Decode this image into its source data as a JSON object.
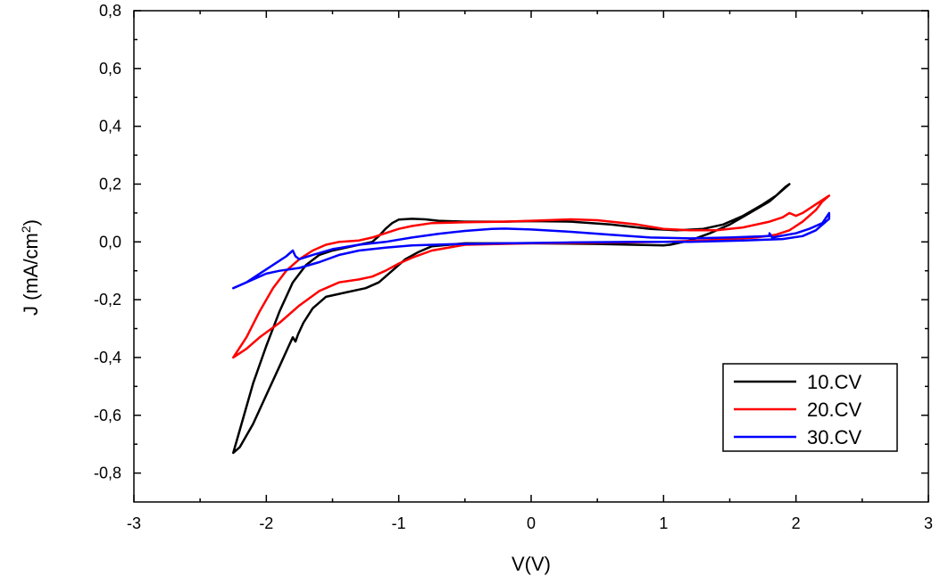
{
  "chart_data": {
    "type": "line",
    "title": "",
    "xlabel": "V(V)",
    "ylabel": "J (mA/cm²)",
    "ylabel_parts": {
      "main": "J (mA/cm",
      "sup": "2",
      "close": ")"
    },
    "xlim": [
      -3,
      3
    ],
    "ylim": [
      -0.9,
      0.8
    ],
    "x_ticks": [
      -3,
      -2,
      -1,
      0,
      1,
      2,
      3
    ],
    "x_tick_labels": [
      "-3",
      "-2",
      "-1",
      "0",
      "1",
      "2",
      "3"
    ],
    "y_ticks": [
      -0.8,
      -0.6,
      -0.4,
      -0.2,
      0.0,
      0.2,
      0.4,
      0.6,
      0.8
    ],
    "y_tick_labels": [
      "-0,8",
      "-0,6",
      "-0,4",
      "-0,2",
      "0,0",
      "0,2",
      "0,4",
      "0,6",
      "0,8"
    ],
    "grid": false,
    "legend_position": "bottom-right",
    "series": [
      {
        "name": "10.CV",
        "color": "#000000",
        "points": [
          [
            -2.25,
            -0.73
          ],
          [
            -2.2,
            -0.65
          ],
          [
            -2.1,
            -0.49
          ],
          [
            -2.0,
            -0.36
          ],
          [
            -1.9,
            -0.24
          ],
          [
            -1.8,
            -0.14
          ],
          [
            -1.7,
            -0.08
          ],
          [
            -1.6,
            -0.045
          ],
          [
            -1.5,
            -0.03
          ],
          [
            -1.4,
            -0.02
          ],
          [
            -1.3,
            -0.01
          ],
          [
            -1.2,
            0.0
          ],
          [
            -1.15,
            0.02
          ],
          [
            -1.1,
            0.045
          ],
          [
            -1.05,
            0.065
          ],
          [
            -1.0,
            0.077
          ],
          [
            -0.9,
            0.08
          ],
          [
            -0.8,
            0.078
          ],
          [
            -0.7,
            0.073
          ],
          [
            -0.5,
            0.07
          ],
          [
            -0.2,
            0.07
          ],
          [
            0.0,
            0.072
          ],
          [
            0.3,
            0.07
          ],
          [
            0.6,
            0.06
          ],
          [
            0.9,
            0.045
          ],
          [
            1.1,
            0.04
          ],
          [
            1.3,
            0.045
          ],
          [
            1.45,
            0.06
          ],
          [
            1.6,
            0.09
          ],
          [
            1.75,
            0.13
          ],
          [
            1.85,
            0.16
          ],
          [
            1.92,
            0.19
          ],
          [
            1.95,
            0.2
          ],
          [
            1.9,
            0.18
          ],
          [
            1.8,
            0.14
          ],
          [
            1.65,
            0.1
          ],
          [
            1.5,
            0.06
          ],
          [
            1.35,
            0.03
          ],
          [
            1.2,
            0.005
          ],
          [
            1.05,
            -0.01
          ],
          [
            1.0,
            -0.012
          ],
          [
            0.5,
            -0.007
          ],
          [
            0.0,
            -0.005
          ],
          [
            -0.5,
            -0.005
          ],
          [
            -0.75,
            -0.015
          ],
          [
            -0.85,
            -0.035
          ],
          [
            -0.95,
            -0.06
          ],
          [
            -1.05,
            -0.1
          ],
          [
            -1.15,
            -0.14
          ],
          [
            -1.25,
            -0.16
          ],
          [
            -1.4,
            -0.175
          ],
          [
            -1.55,
            -0.19
          ],
          [
            -1.65,
            -0.23
          ],
          [
            -1.72,
            -0.28
          ],
          [
            -1.76,
            -0.32
          ],
          [
            -1.78,
            -0.345
          ],
          [
            -1.8,
            -0.33
          ],
          [
            -1.83,
            -0.36
          ],
          [
            -1.9,
            -0.43
          ],
          [
            -2.0,
            -0.53
          ],
          [
            -2.1,
            -0.63
          ],
          [
            -2.2,
            -0.71
          ],
          [
            -2.25,
            -0.73
          ]
        ]
      },
      {
        "name": "20.CV",
        "color": "#ff0000",
        "points": [
          [
            -2.25,
            -0.4
          ],
          [
            -2.15,
            -0.33
          ],
          [
            -2.05,
            -0.24
          ],
          [
            -1.95,
            -0.16
          ],
          [
            -1.85,
            -0.1
          ],
          [
            -1.75,
            -0.06
          ],
          [
            -1.65,
            -0.03
          ],
          [
            -1.55,
            -0.01
          ],
          [
            -1.45,
            0.0
          ],
          [
            -1.3,
            0.005
          ],
          [
            -1.2,
            0.015
          ],
          [
            -1.1,
            0.03
          ],
          [
            -1.0,
            0.045
          ],
          [
            -0.9,
            0.055
          ],
          [
            -0.75,
            0.065
          ],
          [
            -0.5,
            0.068
          ],
          [
            -0.2,
            0.07
          ],
          [
            0.0,
            0.073
          ],
          [
            0.3,
            0.078
          ],
          [
            0.5,
            0.075
          ],
          [
            0.8,
            0.06
          ],
          [
            1.0,
            0.045
          ],
          [
            1.2,
            0.04
          ],
          [
            1.4,
            0.04
          ],
          [
            1.6,
            0.05
          ],
          [
            1.8,
            0.07
          ],
          [
            1.9,
            0.085
          ],
          [
            1.95,
            0.1
          ],
          [
            2.0,
            0.09
          ],
          [
            2.05,
            0.1
          ],
          [
            2.15,
            0.13
          ],
          [
            2.25,
            0.16
          ],
          [
            2.2,
            0.14
          ],
          [
            2.15,
            0.11
          ],
          [
            2.05,
            0.07
          ],
          [
            1.95,
            0.04
          ],
          [
            1.85,
            0.025
          ],
          [
            1.7,
            0.015
          ],
          [
            1.5,
            0.01
          ],
          [
            1.3,
            0.005
          ],
          [
            1.0,
            0.0
          ],
          [
            0.5,
            -0.003
          ],
          [
            0.0,
            -0.005
          ],
          [
            -0.5,
            -0.01
          ],
          [
            -0.75,
            -0.03
          ],
          [
            -0.9,
            -0.055
          ],
          [
            -1.0,
            -0.075
          ],
          [
            -1.1,
            -0.1
          ],
          [
            -1.2,
            -0.12
          ],
          [
            -1.3,
            -0.13
          ],
          [
            -1.45,
            -0.14
          ],
          [
            -1.6,
            -0.17
          ],
          [
            -1.75,
            -0.22
          ],
          [
            -1.9,
            -0.28
          ],
          [
            -2.05,
            -0.33
          ],
          [
            -2.15,
            -0.37
          ],
          [
            -2.25,
            -0.4
          ]
        ]
      },
      {
        "name": "30.CV",
        "color": "#0000ff",
        "points": [
          [
            -2.25,
            -0.16
          ],
          [
            -2.15,
            -0.14
          ],
          [
            -2.05,
            -0.11
          ],
          [
            -1.95,
            -0.08
          ],
          [
            -1.85,
            -0.05
          ],
          [
            -1.8,
            -0.03
          ],
          [
            -1.78,
            -0.05
          ],
          [
            -1.75,
            -0.06
          ],
          [
            -1.65,
            -0.045
          ],
          [
            -1.5,
            -0.025
          ],
          [
            -1.3,
            -0.01
          ],
          [
            -1.1,
            0.0
          ],
          [
            -0.9,
            0.015
          ],
          [
            -0.7,
            0.028
          ],
          [
            -0.5,
            0.038
          ],
          [
            -0.3,
            0.045
          ],
          [
            -0.2,
            0.046
          ],
          [
            0.0,
            0.043
          ],
          [
            0.3,
            0.035
          ],
          [
            0.6,
            0.025
          ],
          [
            0.9,
            0.015
          ],
          [
            1.2,
            0.012
          ],
          [
            1.5,
            0.015
          ],
          [
            1.8,
            0.02
          ],
          [
            1.8,
            0.03
          ],
          [
            1.82,
            0.015
          ],
          [
            2.0,
            0.03
          ],
          [
            2.1,
            0.045
          ],
          [
            2.2,
            0.065
          ],
          [
            2.25,
            0.1
          ],
          [
            2.25,
            0.08
          ],
          [
            2.15,
            0.04
          ],
          [
            2.05,
            0.02
          ],
          [
            1.9,
            0.01
          ],
          [
            1.6,
            0.005
          ],
          [
            1.2,
            0.0
          ],
          [
            0.8,
            0.0
          ],
          [
            0.3,
            -0.002
          ],
          [
            -0.2,
            -0.005
          ],
          [
            -0.6,
            -0.008
          ],
          [
            -0.9,
            -0.012
          ],
          [
            -1.1,
            -0.02
          ],
          [
            -1.3,
            -0.03
          ],
          [
            -1.45,
            -0.045
          ],
          [
            -1.6,
            -0.07
          ],
          [
            -1.75,
            -0.09
          ],
          [
            -1.9,
            -0.1
          ],
          [
            -2.0,
            -0.11
          ],
          [
            -2.15,
            -0.14
          ],
          [
            -2.25,
            -0.16
          ]
        ]
      }
    ]
  }
}
